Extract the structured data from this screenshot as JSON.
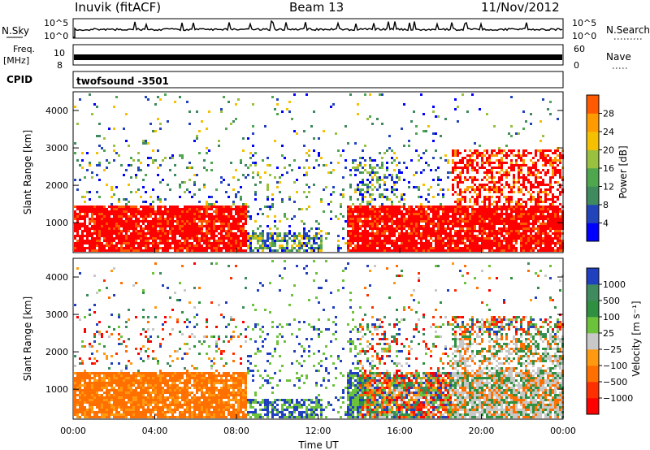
{
  "header": {
    "station": "Inuvik (fitACF)",
    "beam": "Beam 13",
    "date": "11/Nov/2012"
  },
  "strips": {
    "nsky_label": "N.Sky",
    "nsky_ticks": [
      "10^5",
      "10^0"
    ],
    "nsearch_label": "N.Search",
    "nsearch_ticks": [
      "10^5",
      "10^0"
    ],
    "freq_label_line1": "Freq.",
    "freq_label_line2": "[MHz]",
    "freq_ticks": [
      "10",
      "8"
    ],
    "nave_label": "Nave",
    "nave_ticks": [
      "60",
      "0"
    ],
    "cpid_label": "CPID",
    "cpid_value": "twofsound -3501"
  },
  "chart_data": [
    {
      "type": "heatmap",
      "name": "power-panel",
      "ylabel": "Slant Range [km]",
      "yticks": [
        1000,
        2000,
        3000,
        4000
      ],
      "ylim": [
        200,
        4500
      ],
      "xlim": [
        0,
        24
      ],
      "colorbar_label": "Power [dB]",
      "colorbar_ticks": [
        "28",
        "24",
        "20",
        "16",
        "12",
        "8",
        "4"
      ],
      "colors": [
        "#0000ff",
        "#2244bb",
        "#3f8a5e",
        "#4ea64e",
        "#9ac040",
        "#f5c000",
        "#ff9a00",
        "#ff5a00",
        "#ff0000"
      ]
    },
    {
      "type": "heatmap",
      "name": "velocity-panel",
      "ylabel": "Slant Range [km]",
      "yticks": [
        1000,
        2000,
        3000,
        4000
      ],
      "ylim": [
        200,
        4500
      ],
      "xlim": [
        0,
        24
      ],
      "colorbar_label": "Velocity [m s⁻¹]",
      "colorbar_ticks": [
        "1000",
        "500",
        "100",
        "25",
        "−25",
        "−100",
        "−500",
        "−1000"
      ],
      "colors": [
        "#2040c0",
        "#3f8a5e",
        "#2e9040",
        "#6cc23a",
        "#c8c8c8",
        "#ff9a10",
        "#ff7000",
        "#ff3000",
        "#ff0000"
      ],
      "xlabel": "Time UT",
      "xticks": [
        "00:00",
        "04:00",
        "08:00",
        "12:00",
        "16:00",
        "20:00",
        "00:00"
      ]
    }
  ]
}
